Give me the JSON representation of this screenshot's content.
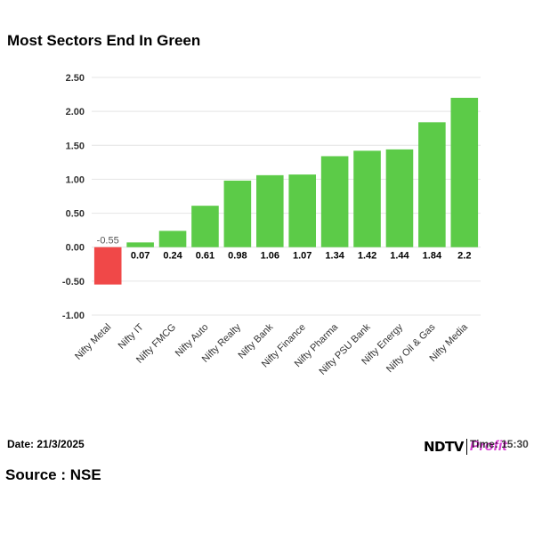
{
  "header": {
    "title": "Most Sectors End In Green"
  },
  "footer": {
    "date": "Date: 21/3/2025",
    "time": "Time: 15:30",
    "source": "Source : NSE",
    "logo_left": "NDTV",
    "logo_right": "Profit"
  },
  "colors": {
    "positive": "#5ccb48",
    "negative": "#f04848"
  },
  "chart_data": {
    "type": "bar",
    "title": "Most Sectors End In Green",
    "xlabel": "",
    "ylabel": "",
    "ylim": [
      -1.0,
      2.5
    ],
    "yticks": [
      "2.50",
      "2.00",
      "1.50",
      "1.00",
      "0.50",
      "0.00",
      "-0.50",
      "-1.00"
    ],
    "grid": true,
    "legend": "none",
    "categories": [
      "Nifty Metal",
      "Nifty IT",
      "Nifty FMCG",
      "Nifty Auto",
      "Nifty Realty",
      "Nifty Bank",
      "Nifty Finance",
      "Nifty Pharma",
      "Nifty PSU Bank",
      "Nifty Energy",
      "Nifty Oil & Gas",
      "Nifty Media"
    ],
    "values": [
      -0.55,
      0.07,
      0.24,
      0.61,
      0.98,
      1.06,
      1.07,
      1.34,
      1.42,
      1.44,
      1.84,
      2.2
    ],
    "data_labels": [
      "-0.55",
      "0.07",
      "0.24",
      "0.61",
      "0.98",
      "1.06",
      "1.07",
      "1.34",
      "1.42",
      "1.44",
      "1.84",
      "2.2"
    ]
  }
}
